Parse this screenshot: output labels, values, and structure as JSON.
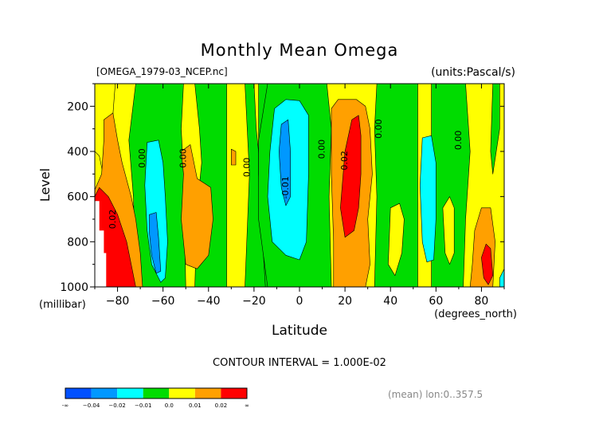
{
  "chart_data": {
    "type": "heatmap",
    "title": "Monthly Mean Omega",
    "subtitle_left": "[OMEGA_1979-03_NCEP.nc]",
    "subtitle_right": "(units:Pascal/s)",
    "xlabel": "Latitude",
    "xunit": "(degrees_north)",
    "ylabel": "Level",
    "yunit": "(millibar)",
    "xlim": [
      -90,
      90
    ],
    "ylim": [
      1000,
      100
    ],
    "x_ticks": [
      -80,
      -60,
      -40,
      -20,
      0,
      20,
      40,
      60,
      80
    ],
    "x_tick_labels": [
      "−80",
      "−60",
      "−40",
      "−20",
      "0",
      "20",
      "40",
      "60",
      "80"
    ],
    "y_ticks": [
      200,
      400,
      600,
      800,
      1000
    ],
    "y_tick_labels": [
      "200",
      "400",
      "600",
      "800",
      "1000"
    ],
    "contour_interval_text": "CONTOUR INTERVAL = 1.000E-02",
    "footer_text": "(mean) lon:0..357.5",
    "colors": {
      "lt_m04": "#0050ff",
      "m04_m02": "#0098ff",
      "m02_m01": "#00ffff",
      "m01_0": "#00dc00",
      "0_001": "#ffff00",
      "001_002": "#ffa000",
      "gt_002": "#ff0000",
      "missing": "#ffffff"
    },
    "colorbar": {
      "colors": [
        "#0050ff",
        "#0098ff",
        "#00ffff",
        "#00dc00",
        "#ffff00",
        "#ffa000",
        "#ff0000"
      ],
      "labels": [
        "-∞",
        "−0.04",
        "−0.02",
        "−0.01",
        "0.0",
        "0.01",
        "0.02",
        "∞"
      ]
    },
    "contour_labels": [
      {
        "lat": -69,
        "lev": 430,
        "text": "0.00"
      },
      {
        "lat": -51,
        "lev": 430,
        "text": "0.00"
      },
      {
        "lat": -23,
        "lev": 470,
        "text": "0.00"
      },
      {
        "lat": -6,
        "lev": 560,
        "text": "-0.01"
      },
      {
        "lat": 10,
        "lev": 390,
        "text": "0.00"
      },
      {
        "lat": 20,
        "lev": 440,
        "text": "0.02"
      },
      {
        "lat": 35,
        "lev": 300,
        "text": "0.00"
      },
      {
        "lat": 70,
        "lev": 350,
        "text": "0.00"
      },
      {
        "lat": -82,
        "lev": 700,
        "text": "0.02"
      }
    ],
    "regions": [
      {
        "cls": "0_001",
        "pts": [
          [
            -90,
            100
          ],
          [
            90,
            100
          ],
          [
            90,
            1000
          ],
          [
            -90,
            1000
          ]
        ]
      },
      {
        "cls": "0_001",
        "pts": [
          [
            -90,
            100
          ],
          [
            -81,
            100
          ],
          [
            -84,
            500
          ],
          [
            -86,
            520
          ],
          [
            -88,
            420
          ],
          [
            -90,
            400
          ]
        ]
      },
      {
        "cls": "m01_0",
        "pts": [
          [
            -72,
            100
          ],
          [
            -51,
            100
          ],
          [
            -52,
            300
          ],
          [
            -51,
            500
          ],
          [
            -50,
            1000
          ],
          [
            -72,
            1000
          ],
          [
            -73,
            600
          ],
          [
            -75,
            350
          ]
        ]
      },
      {
        "cls": "m01_0",
        "pts": [
          [
            -46,
            100
          ],
          [
            -32,
            100
          ],
          [
            -32,
            1000
          ],
          [
            -46,
            1000
          ],
          [
            -45,
            650
          ],
          [
            -43,
            450
          ],
          [
            -44,
            300
          ]
        ]
      },
      {
        "cls": "m01_0",
        "pts": [
          [
            -24,
            100
          ],
          [
            -20,
            100
          ],
          [
            -19,
            300
          ],
          [
            -14,
            800
          ],
          [
            -13,
            1000
          ],
          [
            -24,
            1000
          ],
          [
            -22,
            500
          ]
        ]
      },
      {
        "cls": "m01_0",
        "pts": [
          [
            -18,
            100
          ],
          [
            -8,
            100
          ],
          [
            -12,
            200
          ],
          [
            -15,
            350
          ],
          [
            -16,
            500
          ],
          [
            -15,
            700
          ],
          [
            -12,
            1000
          ],
          [
            -15,
            1000
          ],
          [
            -18,
            500
          ]
        ]
      },
      {
        "cls": "m01_0",
        "pts": [
          [
            -14,
            100
          ],
          [
            12,
            100
          ],
          [
            14,
            300
          ],
          [
            13,
            600
          ],
          [
            14,
            1000
          ],
          [
            -14,
            1000
          ],
          [
            -18,
            700
          ],
          [
            -18,
            350
          ]
        ]
      },
      {
        "cls": "m01_0",
        "pts": [
          [
            34,
            100
          ],
          [
            52,
            100
          ],
          [
            52,
            1000
          ],
          [
            33,
            1000
          ],
          [
            34,
            600
          ],
          [
            33,
            300
          ]
        ]
      },
      {
        "cls": "m01_0",
        "pts": [
          [
            58,
            100
          ],
          [
            73,
            100
          ],
          [
            75,
            400
          ],
          [
            73,
            700
          ],
          [
            72,
            1000
          ],
          [
            58,
            1000
          ]
        ]
      },
      {
        "cls": "m01_0",
        "pts": [
          [
            85,
            100
          ],
          [
            88,
            100
          ],
          [
            88,
            300
          ],
          [
            85,
            500
          ],
          [
            84,
            400
          ]
        ]
      },
      {
        "cls": "0_001",
        "pts": [
          [
            40,
            650
          ],
          [
            44,
            630
          ],
          [
            46,
            700
          ],
          [
            45,
            850
          ],
          [
            42,
            950
          ],
          [
            39,
            900
          ]
        ]
      },
      {
        "cls": "0_001",
        "pts": [
          [
            63,
            650
          ],
          [
            66,
            600
          ],
          [
            68,
            650
          ],
          [
            68,
            850
          ],
          [
            66,
            900
          ],
          [
            64,
            850
          ]
        ]
      },
      {
        "cls": "m02_m01",
        "pts": [
          [
            -67,
            360
          ],
          [
            -62,
            350
          ],
          [
            -60,
            450
          ],
          [
            -59,
            600
          ],
          [
            -58,
            800
          ],
          [
            -59,
            960
          ],
          [
            -61,
            980
          ],
          [
            -65,
            900
          ],
          [
            -67,
            750
          ],
          [
            -68,
            550
          ]
        ]
      },
      {
        "cls": "m02_m01",
        "pts": [
          [
            -11,
            210
          ],
          [
            -6,
            170
          ],
          [
            0,
            175
          ],
          [
            4,
            240
          ],
          [
            4,
            500
          ],
          [
            3,
            800
          ],
          [
            0,
            880
          ],
          [
            -6,
            860
          ],
          [
            -12,
            800
          ],
          [
            -14,
            600
          ],
          [
            -13,
            400
          ]
        ]
      },
      {
        "cls": "m02_m01",
        "pts": [
          [
            54,
            340
          ],
          [
            58,
            330
          ],
          [
            60,
            450
          ],
          [
            60,
            700
          ],
          [
            59,
            880
          ],
          [
            56,
            890
          ],
          [
            54,
            800
          ],
          [
            53,
            550
          ]
        ]
      },
      {
        "cls": "m04_m02",
        "pts": [
          [
            -66,
            680
          ],
          [
            -63,
            670
          ],
          [
            -62,
            780
          ],
          [
            -61,
            930
          ],
          [
            -63,
            940
          ],
          [
            -65,
            860
          ],
          [
            -66,
            760
          ]
        ]
      },
      {
        "cls": "m04_m02",
        "pts": [
          [
            -8,
            280
          ],
          [
            -5,
            260
          ],
          [
            -4,
            400
          ],
          [
            -4,
            600
          ],
          [
            -6,
            640
          ],
          [
            -8,
            560
          ],
          [
            -9,
            400
          ]
        ]
      },
      {
        "cls": "001_002",
        "pts": [
          [
            -52,
            400
          ],
          [
            -48,
            370
          ],
          [
            -45,
            520
          ],
          [
            -39,
            560
          ],
          [
            -38,
            700
          ],
          [
            -40,
            860
          ],
          [
            -45,
            920
          ],
          [
            -50,
            900
          ],
          [
            -52,
            700
          ],
          [
            -51,
            500
          ]
        ]
      },
      {
        "cls": "001_002",
        "pts": [
          [
            -30,
            390
          ],
          [
            -28,
            400
          ],
          [
            -28,
            460
          ],
          [
            -30,
            460
          ]
        ]
      },
      {
        "cls": "001_002",
        "pts": [
          [
            -86,
            260
          ],
          [
            -82,
            230
          ],
          [
            -80,
            350
          ],
          [
            -78,
            450
          ],
          [
            -74,
            600
          ],
          [
            -72,
            700
          ],
          [
            -70,
            850
          ],
          [
            -69,
            1000
          ],
          [
            -90,
            1000
          ],
          [
            -90,
            570
          ],
          [
            -87,
            500
          ],
          [
            -86,
            350
          ]
        ]
      },
      {
        "cls": "001_002",
        "pts": [
          [
            14,
            210
          ],
          [
            17,
            170
          ],
          [
            25,
            170
          ],
          [
            29,
            200
          ],
          [
            31,
            300
          ],
          [
            32,
            500
          ],
          [
            30,
            700
          ],
          [
            31,
            900
          ],
          [
            29,
            1000
          ],
          [
            15,
            1000
          ],
          [
            15,
            800
          ],
          [
            14,
            500
          ]
        ]
      },
      {
        "cls": "001_002",
        "pts": [
          [
            77,
            750
          ],
          [
            80,
            650
          ],
          [
            84,
            650
          ],
          [
            86,
            800
          ],
          [
            85,
            1000
          ],
          [
            75,
            1000
          ],
          [
            76,
            900
          ]
        ]
      },
      {
        "cls": "gt_002",
        "pts": [
          [
            -90,
            600
          ],
          [
            -88,
            560
          ],
          [
            -84,
            600
          ],
          [
            -80,
            680
          ],
          [
            -76,
            800
          ],
          [
            -74,
            900
          ],
          [
            -72,
            1000
          ],
          [
            -90,
            1000
          ]
        ]
      },
      {
        "cls": "gt_002",
        "pts": [
          [
            20,
            400
          ],
          [
            23,
            260
          ],
          [
            26,
            240
          ],
          [
            27,
            330
          ],
          [
            27,
            500
          ],
          [
            26,
            650
          ],
          [
            24,
            750
          ],
          [
            20,
            780
          ],
          [
            18,
            650
          ]
        ]
      },
      {
        "cls": "gt_002",
        "pts": [
          [
            80,
            870
          ],
          [
            82,
            810
          ],
          [
            84,
            830
          ],
          [
            85,
            950
          ],
          [
            83,
            990
          ],
          [
            81,
            960
          ]
        ]
      },
      {
        "cls": "missing",
        "pts": [
          [
            -90,
            620
          ],
          [
            -88,
            620
          ],
          [
            -88,
            750
          ],
          [
            -86,
            750
          ],
          [
            -86,
            850
          ],
          [
            -85,
            850
          ],
          [
            -85,
            1000
          ],
          [
            -90,
            1000
          ]
        ]
      },
      {
        "cls": "m02_m01",
        "pts": [
          [
            88,
            960
          ],
          [
            90,
            920
          ],
          [
            90,
            1000
          ],
          [
            88,
            1000
          ]
        ]
      }
    ]
  }
}
